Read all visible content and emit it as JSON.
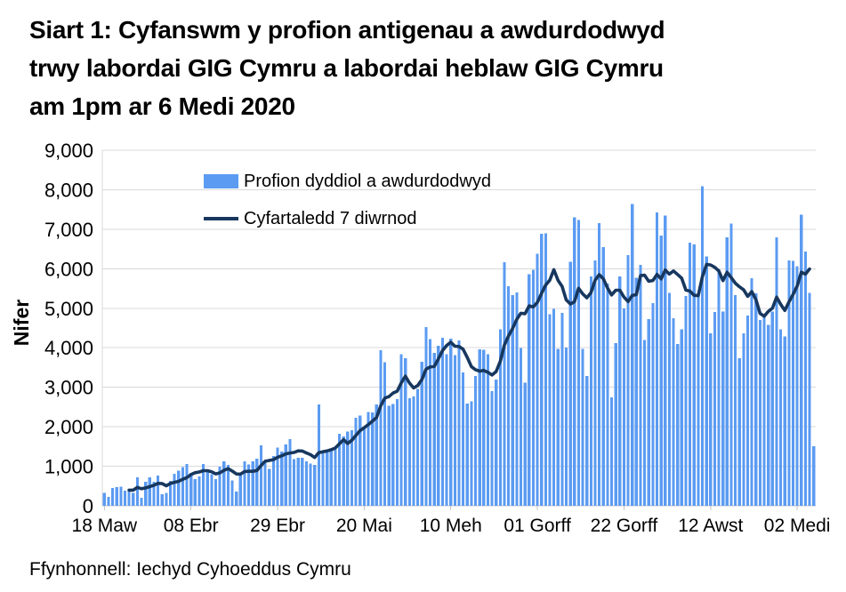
{
  "page": {
    "title_lines": [
      "Siart 1: Cyfanswm y profion antigenau a awdurdodwyd",
      "trwy labordai GIG Cymru a labordai heblaw GIG Cymru",
      "am 1pm ar 6 Medi 2020"
    ],
    "source": "Ffynhonnell: Iechyd Cyhoeddus Cymru"
  },
  "legend": {
    "bar_label": "Profion dyddiol a awdurdodwyd",
    "line_label": "Cyfartaledd 7 diwrnod"
  },
  "colors": {
    "bar": "#5B9BF2",
    "line": "#17375E",
    "grid": "#D9D9D9",
    "axis": "#C6C6C6",
    "text": "#000000"
  },
  "chart_data": {
    "type": "bar",
    "title": "Siart 1: Cyfanswm y profion antigenau a awdurdodwyd trwy labordai GIG Cymru a labordai heblaw GIG Cymru am 1pm ar 6 Medi 2020",
    "ylabel": "Nifer",
    "ylim": [
      0,
      9000
    ],
    "y_tick_step": 1000,
    "y_tick_labels": [
      "0",
      "1,000",
      "2,000",
      "3,000",
      "4,000",
      "5,000",
      "6,000",
      "7,000",
      "8,000",
      "9,000"
    ],
    "x_tick_labels": [
      "18 Maw",
      "08 Ebr",
      "29 Ebr",
      "20 Mai",
      "10 Meh",
      "01 Gorff",
      "22 Gorff",
      "12 Awst",
      "02 Medi"
    ],
    "x_tick_day_indices": [
      0,
      21,
      42,
      63,
      84,
      105,
      126,
      147,
      168
    ],
    "grid": true,
    "legend_position": "top-left-inside",
    "series": [
      {
        "name": "Profion dyddiol a awdurdodwyd",
        "type": "bar",
        "values": [
          330,
          230,
          450,
          470,
          485,
          380,
          425,
          330,
          725,
          205,
          610,
          725,
          610,
          770,
          290,
          330,
          625,
          815,
          890,
          980,
          1055,
          830,
          670,
          740,
          1055,
          890,
          800,
          670,
          995,
          1130,
          1040,
          640,
          360,
          775,
          1120,
          1045,
          1125,
          1190,
          1535,
          1095,
          930,
          1255,
          1470,
          1370,
          1550,
          1690,
          1180,
          1220,
          1220,
          1130,
          1065,
          1040,
          2560,
          1340,
          1360,
          1450,
          1430,
          1820,
          1760,
          1880,
          1910,
          2230,
          2280,
          1950,
          2370,
          2360,
          2560,
          3940,
          3630,
          2530,
          2580,
          2700,
          3840,
          3740,
          2720,
          2770,
          2960,
          3650,
          4520,
          4220,
          3870,
          4050,
          4250,
          3840,
          4230,
          3810,
          4180,
          3370,
          2590,
          2640,
          3290,
          3960,
          3950,
          3840,
          2900,
          3200,
          4470,
          6160,
          5560,
          5330,
          5400,
          3990,
          3120,
          5860,
          5970,
          6380,
          6890,
          6900,
          4850,
          4980,
          3970,
          4880,
          4000,
          6180,
          7300,
          7230,
          3970,
          3290,
          5800,
          6210,
          7150,
          6550,
          5620,
          2740,
          4120,
          5800,
          5000,
          6340,
          7640,
          5770,
          6100,
          4200,
          4730,
          5130,
          7420,
          6840,
          7350,
          5390,
          4750,
          4100,
          4470,
          5310,
          6660,
          6610,
          5330,
          8090,
          6310,
          4360,
          4900,
          5990,
          4920,
          6800,
          7140,
          5330,
          3730,
          4360,
          4820,
          5760,
          5380,
          4700,
          4850,
          4580,
          4920,
          6790,
          4470,
          4290,
          6210,
          6200,
          6060,
          7370,
          6440,
          5390,
          1510
        ]
      },
      {
        "name": "Cyfartaledd 7 diwrnod",
        "type": "line",
        "derived": "7-day trailing mean of bar values",
        "start_index": 6,
        "end_index": 171
      }
    ]
  }
}
